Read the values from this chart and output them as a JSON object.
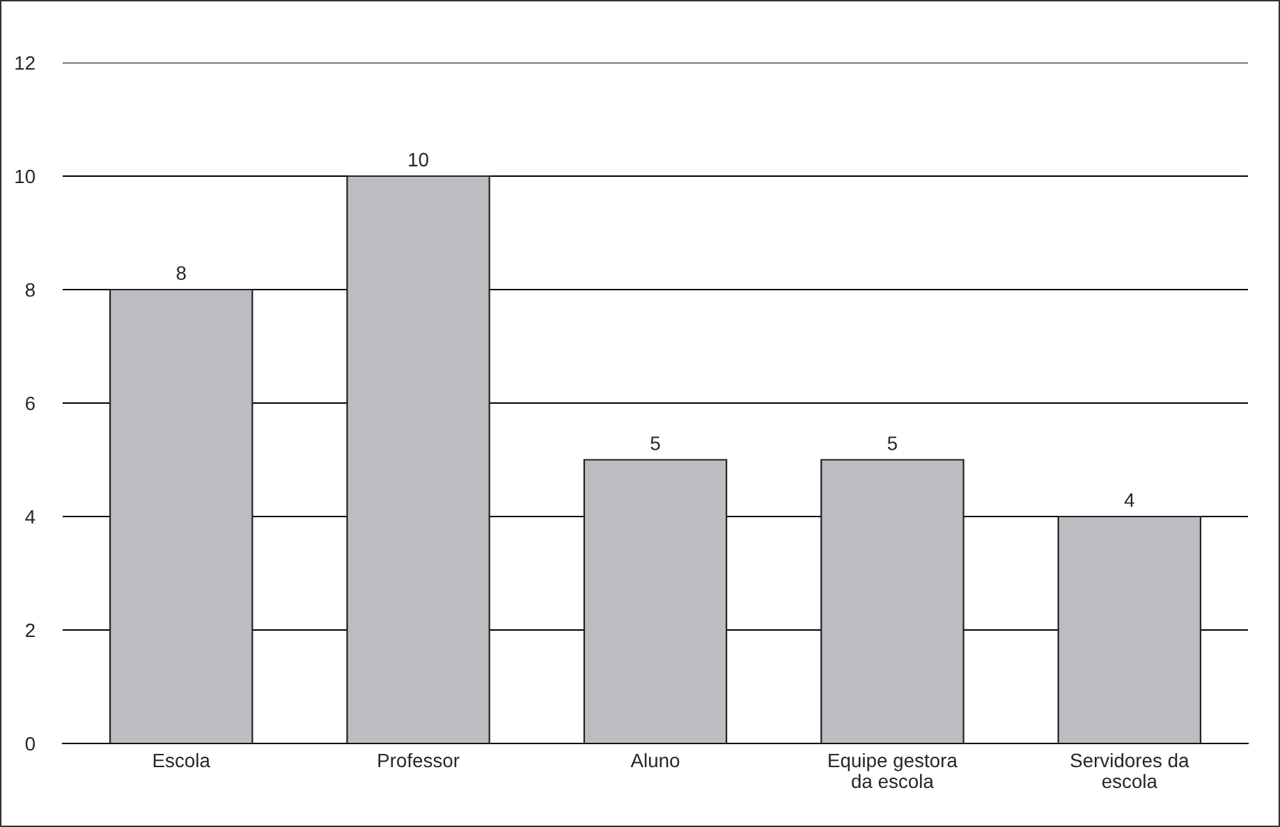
{
  "chart_data": {
    "type": "bar",
    "categories": [
      "Escola",
      "Professor",
      "Aluno",
      "Equipe gestora\nda escola",
      "Servidores da\nescola"
    ],
    "values": [
      8,
      10,
      5,
      5,
      4
    ],
    "color": "#bcbdc0",
    "ylim": [
      0,
      12
    ],
    "yticks": [
      0,
      2,
      4,
      6,
      8,
      10,
      12
    ],
    "grid": "y",
    "data_labels": true
  }
}
